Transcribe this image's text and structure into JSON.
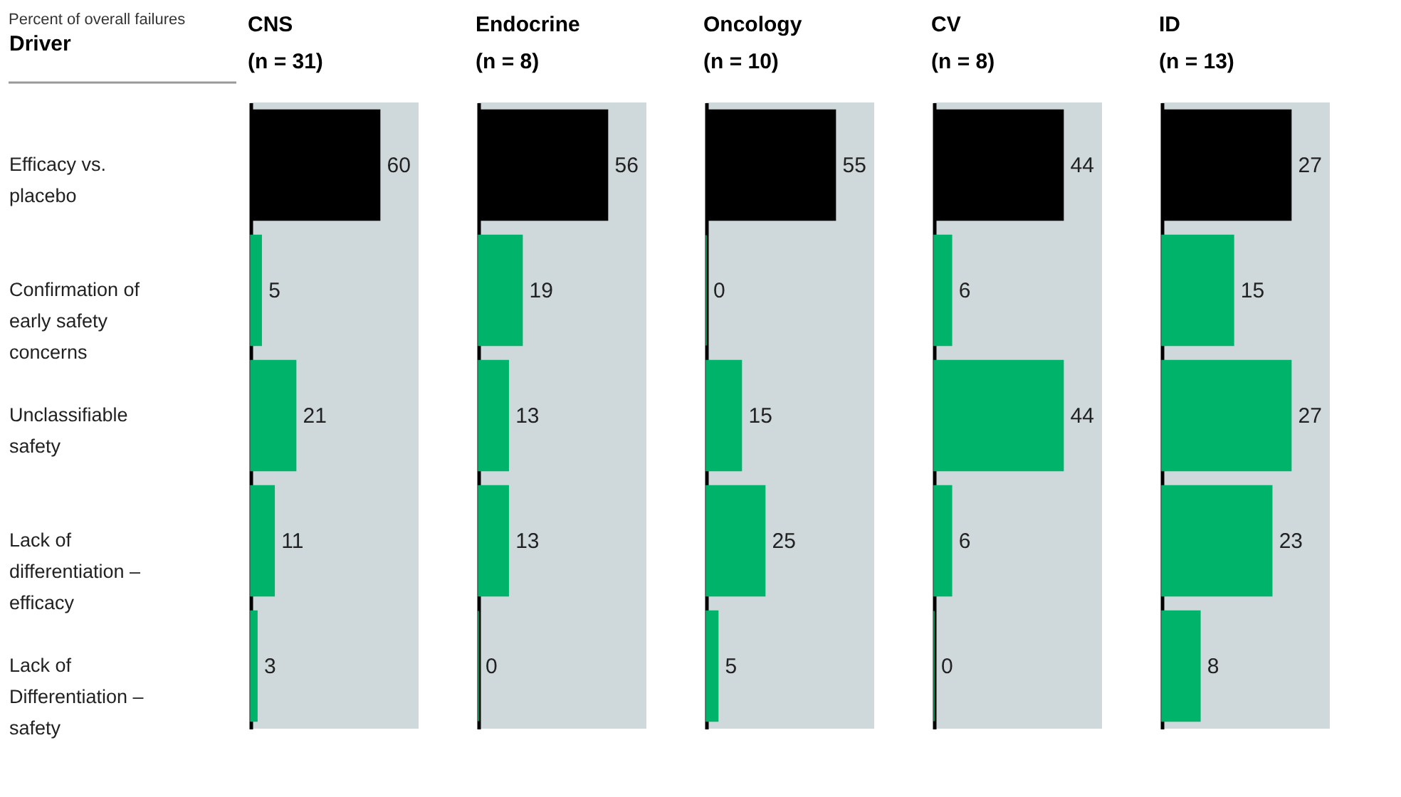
{
  "chart_data": [
    {
      "type": "bar",
      "orientation": "horizontal",
      "title": "CNS",
      "subtitle": "(n = 31)",
      "ylabel": "Driver",
      "annotations": [
        "Percent of overall failures"
      ],
      "categories": [
        "Efficacy vs. placebo",
        "Confirmation of early safety concerns",
        "Unclassifiable safety",
        "Lack of differentiation – efficacy",
        "Lack of Differentiation – safety"
      ],
      "values": [
        60,
        5,
        21,
        11,
        3
      ],
      "colors": [
        "#000000",
        "#00b36b",
        "#00b36b",
        "#00b36b",
        "#00b36b"
      ],
      "data_labels": true,
      "tick_labels": "y"
    },
    {
      "type": "bar",
      "orientation": "horizontal",
      "title": "Endocrine",
      "subtitle": "(n = 8)",
      "categories": [
        "Efficacy vs. placebo",
        "Confirmation of early safety concerns",
        "Unclassifiable safety",
        "Lack of differentiation – efficacy",
        "Lack of Differentiation – safety"
      ],
      "values": [
        56,
        19,
        13,
        13,
        0
      ],
      "colors": [
        "#000000",
        "#00b36b",
        "#00b36b",
        "#00b36b",
        "#00b36b"
      ],
      "data_labels": true,
      "tick_labels": false
    },
    {
      "type": "bar",
      "orientation": "horizontal",
      "title": "Oncology",
      "subtitle": "(n = 10)",
      "categories": [
        "Efficacy vs. placebo",
        "Confirmation of early safety concerns",
        "Unclassifiable safety",
        "Lack of differentiation – efficacy",
        "Lack of Differentiation – safety"
      ],
      "values": [
        55,
        0,
        15,
        25,
        5
      ],
      "colors": [
        "#000000",
        "#00b36b",
        "#00b36b",
        "#00b36b",
        "#00b36b"
      ],
      "data_labels": true,
      "tick_labels": false
    },
    {
      "type": "bar",
      "orientation": "horizontal",
      "title": "CV",
      "subtitle": "(n = 8)",
      "categories": [
        "Efficacy vs. placebo",
        "Confirmation of early safety concerns",
        "Unclassifiable safety",
        "Lack of differentiation – efficacy",
        "Lack of Differentiation – safety"
      ],
      "values": [
        44,
        6,
        44,
        6,
        0
      ],
      "colors": [
        "#000000",
        "#00b36b",
        "#00b36b",
        "#00b36b",
        "#00b36b"
      ],
      "data_labels": true,
      "tick_labels": false
    },
    {
      "type": "bar",
      "orientation": "horizontal",
      "title": "ID",
      "subtitle": "(n = 13)",
      "categories": [
        "Efficacy vs. placebo",
        "Confirmation of early safety concerns",
        "Unclassifiable safety",
        "Lack of differentiation – efficacy",
        "Lack of Differentiation – safety"
      ],
      "values": [
        27,
        15,
        27,
        23,
        8
      ],
      "colors": [
        "#000000",
        "#00b36b",
        "#00b36b",
        "#00b36b",
        "#00b36b"
      ],
      "data_labels": true,
      "tick_labels": false
    }
  ]
}
